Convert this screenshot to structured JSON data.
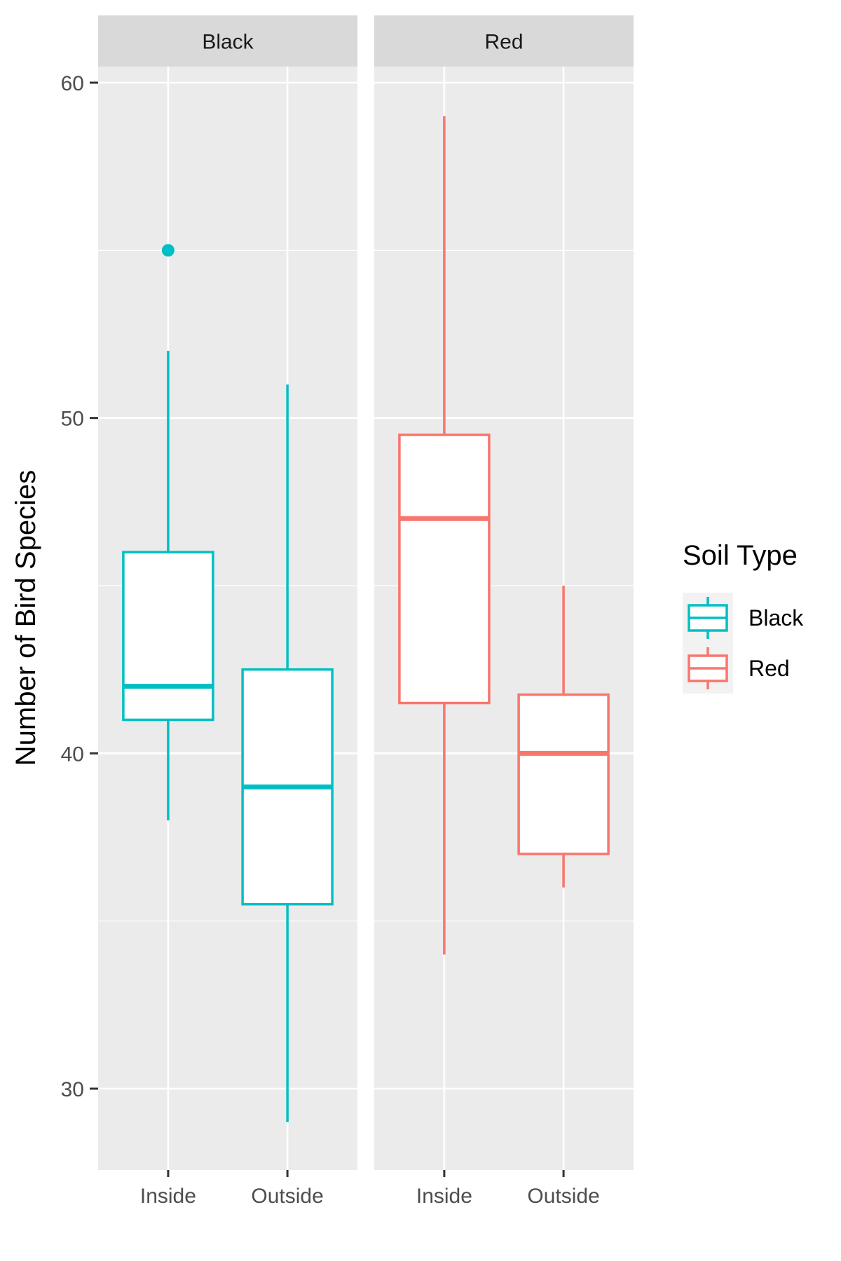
{
  "chart_data": {
    "type": "boxplot",
    "ylabel": "Number of Bird Species",
    "xlabel": "",
    "ylim": [
      26,
      62.5
    ],
    "yticks": [
      30,
      40,
      50,
      60
    ],
    "grid": true,
    "legend": {
      "title": "Soil Type",
      "position": "right",
      "entries": [
        {
          "label": "Black",
          "color": "#00BFC4"
        },
        {
          "label": "Red",
          "color": "#F8766D"
        }
      ]
    },
    "categories": [
      "Inside",
      "Outside"
    ],
    "facets": [
      {
        "label": "Black",
        "color": "#00BFC4",
        "boxes": [
          {
            "category": "Inside",
            "lower_whisker": 38,
            "q1": 41,
            "median": 42,
            "q3": 46,
            "upper_whisker": 52,
            "outliers": [
              55
            ]
          },
          {
            "category": "Outside",
            "lower_whisker": 29,
            "q1": 35.5,
            "median": 39,
            "q3": 42.5,
            "upper_whisker": 51,
            "outliers": []
          }
        ]
      },
      {
        "label": "Red",
        "color": "#F8766D",
        "boxes": [
          {
            "category": "Inside",
            "lower_whisker": 34,
            "q1": 41.5,
            "median": 47,
            "q3": 49.5,
            "upper_whisker": 59,
            "outliers": []
          },
          {
            "category": "Outside",
            "lower_whisker": 36,
            "q1": 37,
            "median": 40,
            "q3": 41.75,
            "upper_whisker": 45,
            "outliers": []
          }
        ]
      }
    ]
  },
  "colors": {
    "panel_bg": "#EBEBEB",
    "strip_bg": "#D9D9D9",
    "grid": "#FFFFFF",
    "axis_ticks": "#333333",
    "legend_key_bg": "#F2F2F2"
  }
}
